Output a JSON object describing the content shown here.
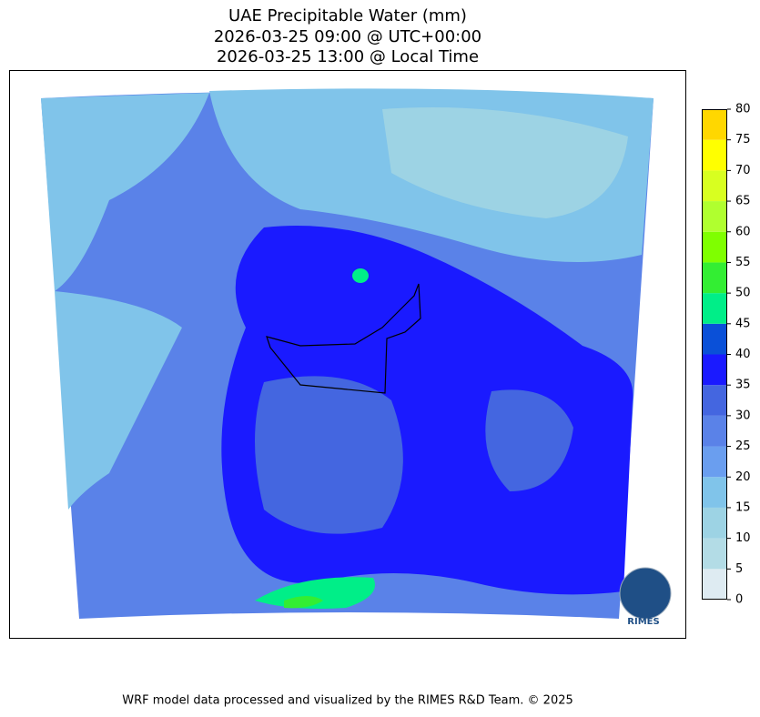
{
  "header": {
    "title_lines": [
      "UAE Precipitable Water (mm)",
      "2026-03-25 09:00 @ UTC+00:00",
      "2026-03-25 13:00 @ Local Time"
    ]
  },
  "colorbar": {
    "levels": [
      0,
      5,
      10,
      15,
      20,
      25,
      30,
      35,
      40,
      45,
      50,
      55,
      60,
      65,
      70,
      75,
      80
    ],
    "colors": [
      "#deebf2",
      "#b3dce6",
      "#9dd3e4",
      "#80c4ea",
      "#6a9eef",
      "#5a82e8",
      "#4466e0",
      "#1a1aff",
      "#0a50d8",
      "#00ee88",
      "#33ee33",
      "#7fff00",
      "#b0ff2f",
      "#d8ff20",
      "#ffff00",
      "#ffd700"
    ]
  },
  "logo": {
    "text": "RIMES"
  },
  "footer": {
    "text": "WRF model data processed and visualized by the RIMES R&D Team. © 2025"
  }
}
